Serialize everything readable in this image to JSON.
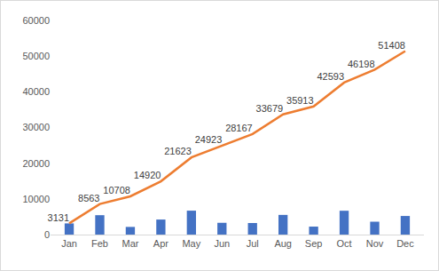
{
  "chart_data": {
    "type": "combo",
    "categories": [
      "Jan",
      "Feb",
      "Mar",
      "Apr",
      "May",
      "Jun",
      "Jul",
      "Aug",
      "Sep",
      "Oct",
      "Nov",
      "Dec"
    ],
    "series": [
      {
        "type": "bar",
        "color": "#4472c4",
        "values": [
          3131,
          5432,
          2145,
          4212,
          6703,
          3300,
          3244,
          5512,
          2234,
          6680,
          3605,
          5210
        ]
      },
      {
        "type": "line",
        "color": "#ed7d31",
        "data_labels": true,
        "values": [
          3131,
          8563,
          10708,
          14920,
          21623,
          24923,
          28167,
          33679,
          35913,
          42593,
          46198,
          51408
        ]
      }
    ],
    "ylim": [
      0,
      60000
    ],
    "yticks": [
      0,
      10000,
      20000,
      30000,
      40000,
      50000,
      60000
    ],
    "grid": false
  }
}
